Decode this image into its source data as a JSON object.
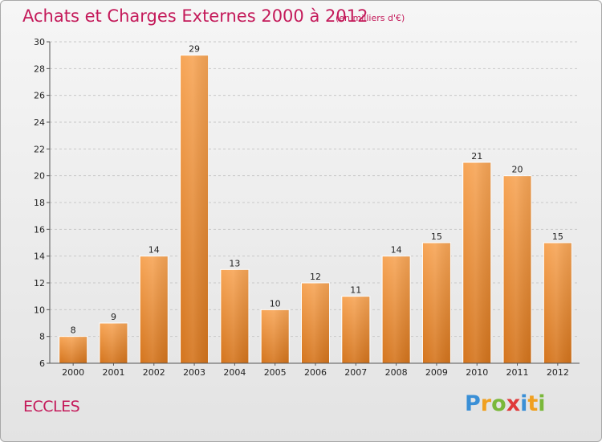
{
  "chart_data": {
    "type": "bar",
    "title": "Achats et Charges Externes 2000 à 2012",
    "subtitle": "(en milliers d'€)",
    "categories": [
      "2000",
      "2001",
      "2002",
      "2003",
      "2004",
      "2005",
      "2006",
      "2007",
      "2008",
      "2009",
      "2010",
      "2011",
      "2012"
    ],
    "values": [
      8,
      9,
      14,
      29,
      13,
      10,
      12,
      11,
      14,
      15,
      21,
      20,
      15
    ],
    "ylim": [
      6,
      30
    ],
    "yticks": [
      6,
      8,
      10,
      12,
      14,
      16,
      18,
      20,
      22,
      24,
      26,
      28,
      30
    ],
    "grid": true,
    "bar_color_top": "#f7a556",
    "bar_color_bottom": "#d4741c",
    "title_color": "#c41a5a"
  },
  "location": "ECCLES",
  "brand": {
    "letters": [
      "P",
      "r",
      "o",
      "x",
      "i",
      "t",
      "i"
    ],
    "colors": [
      "#3a8fd6",
      "#f0a020",
      "#7ab83a",
      "#e03a3a",
      "#3a8fd6",
      "#f0a020",
      "#7ab83a"
    ]
  }
}
